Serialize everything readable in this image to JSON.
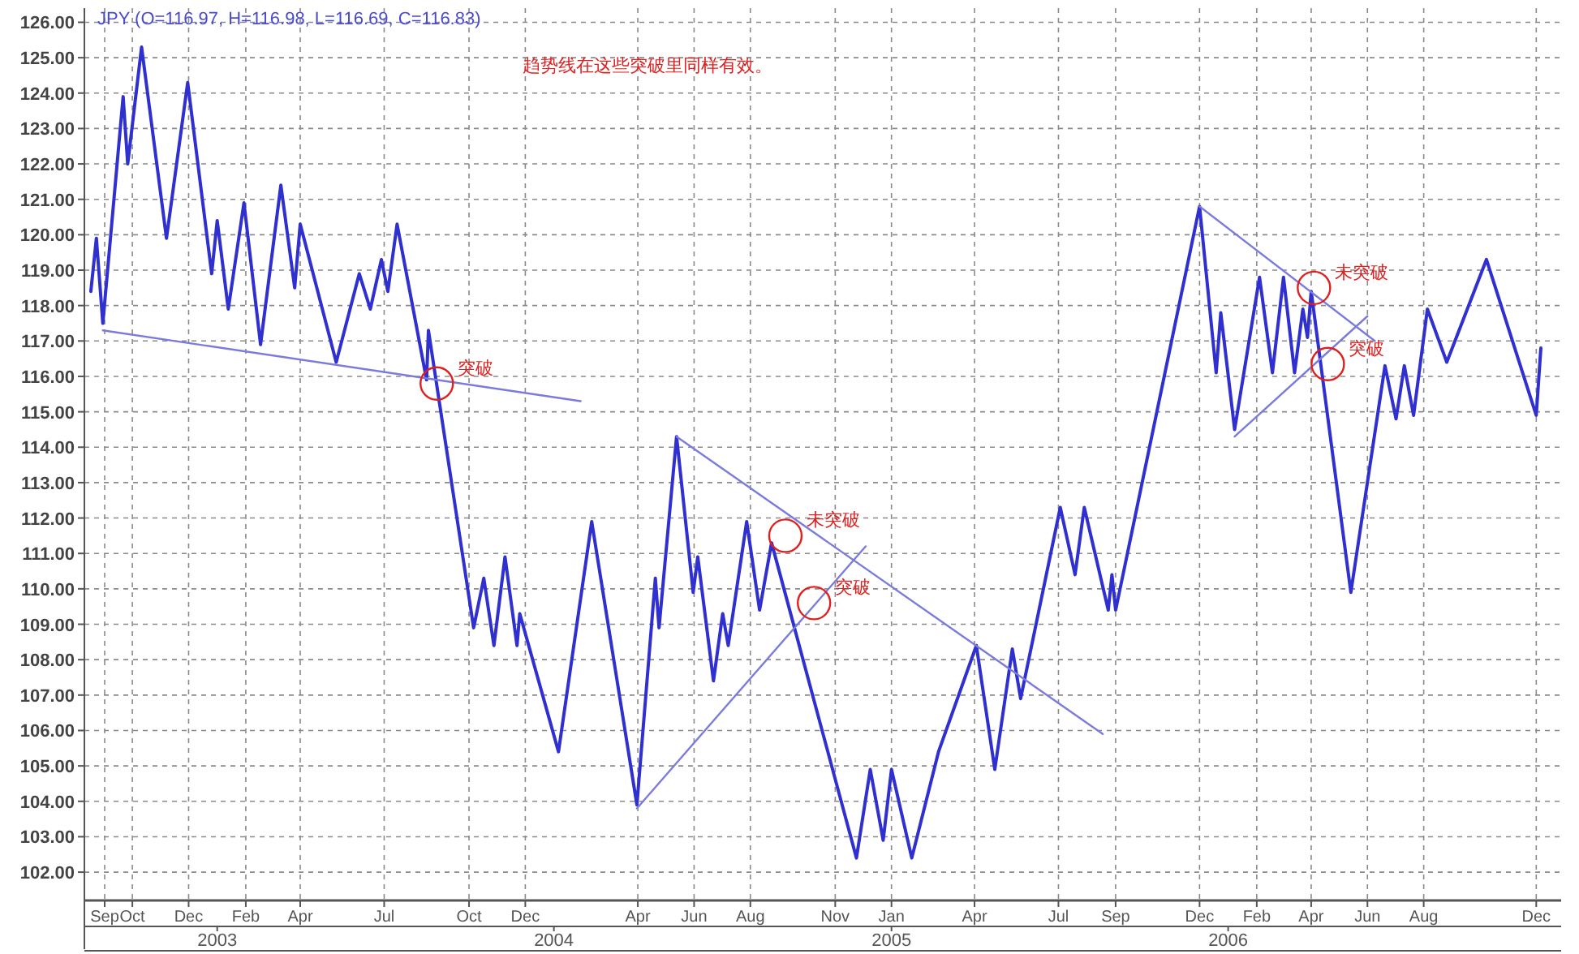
{
  "chart_data": {
    "type": "line",
    "title": "JPY (O=116.97, H=116.98, L=116.69, C=116.83)",
    "annotations": [
      "趋势线在这些突破里同样有效。",
      {
        "text": "突破",
        "x": "2003-08-27",
        "y": 115.8
      },
      {
        "text": "未突破",
        "x": "2004-09-08",
        "y": 111.5
      },
      {
        "text": "突破",
        "x": "2004-10-09",
        "y": 109.6
      },
      {
        "text": "未突破",
        "x": "2006-04-04",
        "y": 118.5
      },
      {
        "text": "突破",
        "x": "2006-04-19",
        "y": 116.35
      }
    ],
    "series": [
      {
        "color": "#3030d0",
        "x": [
          "2002-08-17",
          "2002-08-23",
          "2002-08-30",
          "2002-09-21",
          "2002-09-26",
          "2002-10-11",
          "2002-11-07",
          "2002-11-30",
          "2002-12-26",
          "2003-01-01",
          "2003-01-13",
          "2003-01-30",
          "2003-02-17",
          "2003-03-11",
          "2003-03-26",
          "2003-04-01",
          "2003-05-10",
          "2003-06-04",
          "2003-06-16",
          "2003-06-28",
          "2003-07-05",
          "2003-07-15",
          "2003-08-16",
          "2003-08-18",
          "2003-10-06",
          "2003-10-17",
          "2003-10-28",
          "2003-11-09",
          "2003-11-22",
          "2003-11-25",
          "2004-01-06",
          "2004-02-11",
          "2004-03-31",
          "2004-04-20",
          "2004-04-24",
          "2004-05-13",
          "2004-05-31",
          "2004-06-05",
          "2004-06-22",
          "2004-07-02",
          "2004-07-08",
          "2004-07-28",
          "2004-08-11",
          "2004-08-24",
          "2004-11-24",
          "2004-12-09",
          "2004-12-23",
          "2005-01-01",
          "2005-01-23",
          "2005-02-21",
          "2005-04-03",
          "2005-04-23",
          "2005-05-12",
          "2005-05-21",
          "2005-07-03",
          "2005-07-19",
          "2005-07-29",
          "2005-08-24",
          "2005-08-28",
          "2005-09-01",
          "2005-12-01",
          "2005-12-19",
          "2005-12-24",
          "2006-01-08",
          "2006-02-04",
          "2006-02-18",
          "2006-03-02",
          "2006-03-14",
          "2006-03-23",
          "2006-03-28",
          "2006-04-01",
          "2006-05-14",
          "2006-06-20",
          "2006-07-02",
          "2006-07-11",
          "2006-07-21",
          "2006-08-05",
          "2006-08-26",
          "2006-10-08",
          "2006-12-01",
          "2006-12-06"
        ],
        "values": [
          118.4,
          119.9,
          117.5,
          123.9,
          122.0,
          125.3,
          119.9,
          124.3,
          118.9,
          120.4,
          117.9,
          120.9,
          116.9,
          121.4,
          118.5,
          120.3,
          116.4,
          118.9,
          117.9,
          119.3,
          118.4,
          120.3,
          115.9,
          117.3,
          108.9,
          110.3,
          108.4,
          110.9,
          108.4,
          109.3,
          105.4,
          111.9,
          103.9,
          110.3,
          108.9,
          114.3,
          109.9,
          110.9,
          107.4,
          109.3,
          108.4,
          111.9,
          109.4,
          111.3,
          102.4,
          104.9,
          102.9,
          104.9,
          102.4,
          105.4,
          108.4,
          104.9,
          108.3,
          106.9,
          112.3,
          110.4,
          112.3,
          109.4,
          110.4,
          109.4,
          120.8,
          116.1,
          117.8,
          114.5,
          118.8,
          116.1,
          118.8,
          116.1,
          117.9,
          117.1,
          118.4,
          109.9,
          116.3,
          114.8,
          116.3,
          114.9,
          117.9,
          116.4,
          119.3,
          114.9,
          116.8
        ]
      },
      {
        "color": "#7b7bdc",
        "x": [
          "2002-08-30",
          "2004-01-30"
        ],
        "values": [
          117.3,
          115.3
        ]
      },
      {
        "color": "#7b7bdc",
        "x": [
          "2004-05-13",
          "2005-08-18"
        ],
        "values": [
          114.3,
          105.9
        ]
      },
      {
        "color": "#7b7bdc",
        "x": [
          "2004-03-31",
          "2004-12-04"
        ],
        "values": [
          103.8,
          111.2
        ]
      },
      {
        "color": "#7b7bdc",
        "x": [
          "2005-12-01",
          "2006-06-09"
        ],
        "values": [
          120.8,
          117.0
        ]
      },
      {
        "color": "#7b7bdc",
        "x": [
          "2006-01-08",
          "2006-06-01"
        ],
        "values": [
          114.3,
          117.7
        ]
      }
    ],
    "xlim": [
      "2002-08-10",
      "2006-12-28"
    ],
    "ylim": [
      101.2,
      126.4
    ],
    "xticks": [
      {
        "value": "2002-09-01",
        "label": "Sep"
      },
      {
        "value": "2002-10-01",
        "label": "Oct"
      },
      {
        "value": "2002-12-01",
        "label": "Dec"
      },
      {
        "value": "2003-02-01",
        "label": "Feb"
      },
      {
        "value": "2003-04-01",
        "label": "Apr"
      },
      {
        "value": "2003-07-01",
        "label": "Jul"
      },
      {
        "value": "2003-10-01",
        "label": "Oct"
      },
      {
        "value": "2003-12-01",
        "label": "Dec"
      },
      {
        "value": "2004-04-01",
        "label": "Apr"
      },
      {
        "value": "2004-06-01",
        "label": "Jun"
      },
      {
        "value": "2004-08-01",
        "label": "Aug"
      },
      {
        "value": "2004-11-01",
        "label": "Nov"
      },
      {
        "value": "2005-01-01",
        "label": "Jan"
      },
      {
        "value": "2005-04-01",
        "label": "Apr"
      },
      {
        "value": "2005-07-01",
        "label": "Jul"
      },
      {
        "value": "2005-09-01",
        "label": "Sep"
      },
      {
        "value": "2005-12-01",
        "label": "Dec"
      },
      {
        "value": "2006-02-01",
        "label": "Feb"
      },
      {
        "value": "2006-04-01",
        "label": "Apr"
      },
      {
        "value": "2006-06-01",
        "label": "Jun"
      },
      {
        "value": "2006-08-01",
        "label": "Aug"
      },
      {
        "value": "2006-12-01",
        "label": "Dec"
      }
    ],
    "x2lim": [
      "2002-08-10",
      "2006-12-28"
    ],
    "x2ticks": [
      "2003",
      "2004",
      "2005",
      "2006"
    ],
    "yticks": [
      {
        "value": 102,
        "label": "102.00"
      },
      {
        "value": 103,
        "label": "103.00"
      },
      {
        "value": 104,
        "label": "104.00"
      },
      {
        "value": 105,
        "label": "105.00"
      },
      {
        "value": 106,
        "label": "106.00"
      },
      {
        "value": 107,
        "label": "107.00"
      },
      {
        "value": 108,
        "label": "108.00"
      },
      {
        "value": 109,
        "label": "109.00"
      },
      {
        "value": 110,
        "label": "110.00"
      },
      {
        "value": 111,
        "label": "111.00"
      },
      {
        "value": 112,
        "label": "112.00"
      },
      {
        "value": 113,
        "label": "113.00"
      },
      {
        "value": 114,
        "label": "114.00"
      },
      {
        "value": 115,
        "label": "115.00"
      },
      {
        "value": 116,
        "label": "116.00"
      },
      {
        "value": 117,
        "label": "117.00"
      },
      {
        "value": 118,
        "label": "118.00"
      },
      {
        "value": 119,
        "label": "119.00"
      },
      {
        "value": 120,
        "label": "120.00"
      },
      {
        "value": 121,
        "label": "121.00"
      },
      {
        "value": 122,
        "label": "122.00"
      },
      {
        "value": 123,
        "label": "123.00"
      },
      {
        "value": 124,
        "label": "124.00"
      },
      {
        "value": 125,
        "label": "125.00"
      },
      {
        "value": 126,
        "label": "126.00"
      }
    ],
    "grid": true,
    "marker": "none",
    "line_style": "solid"
  }
}
